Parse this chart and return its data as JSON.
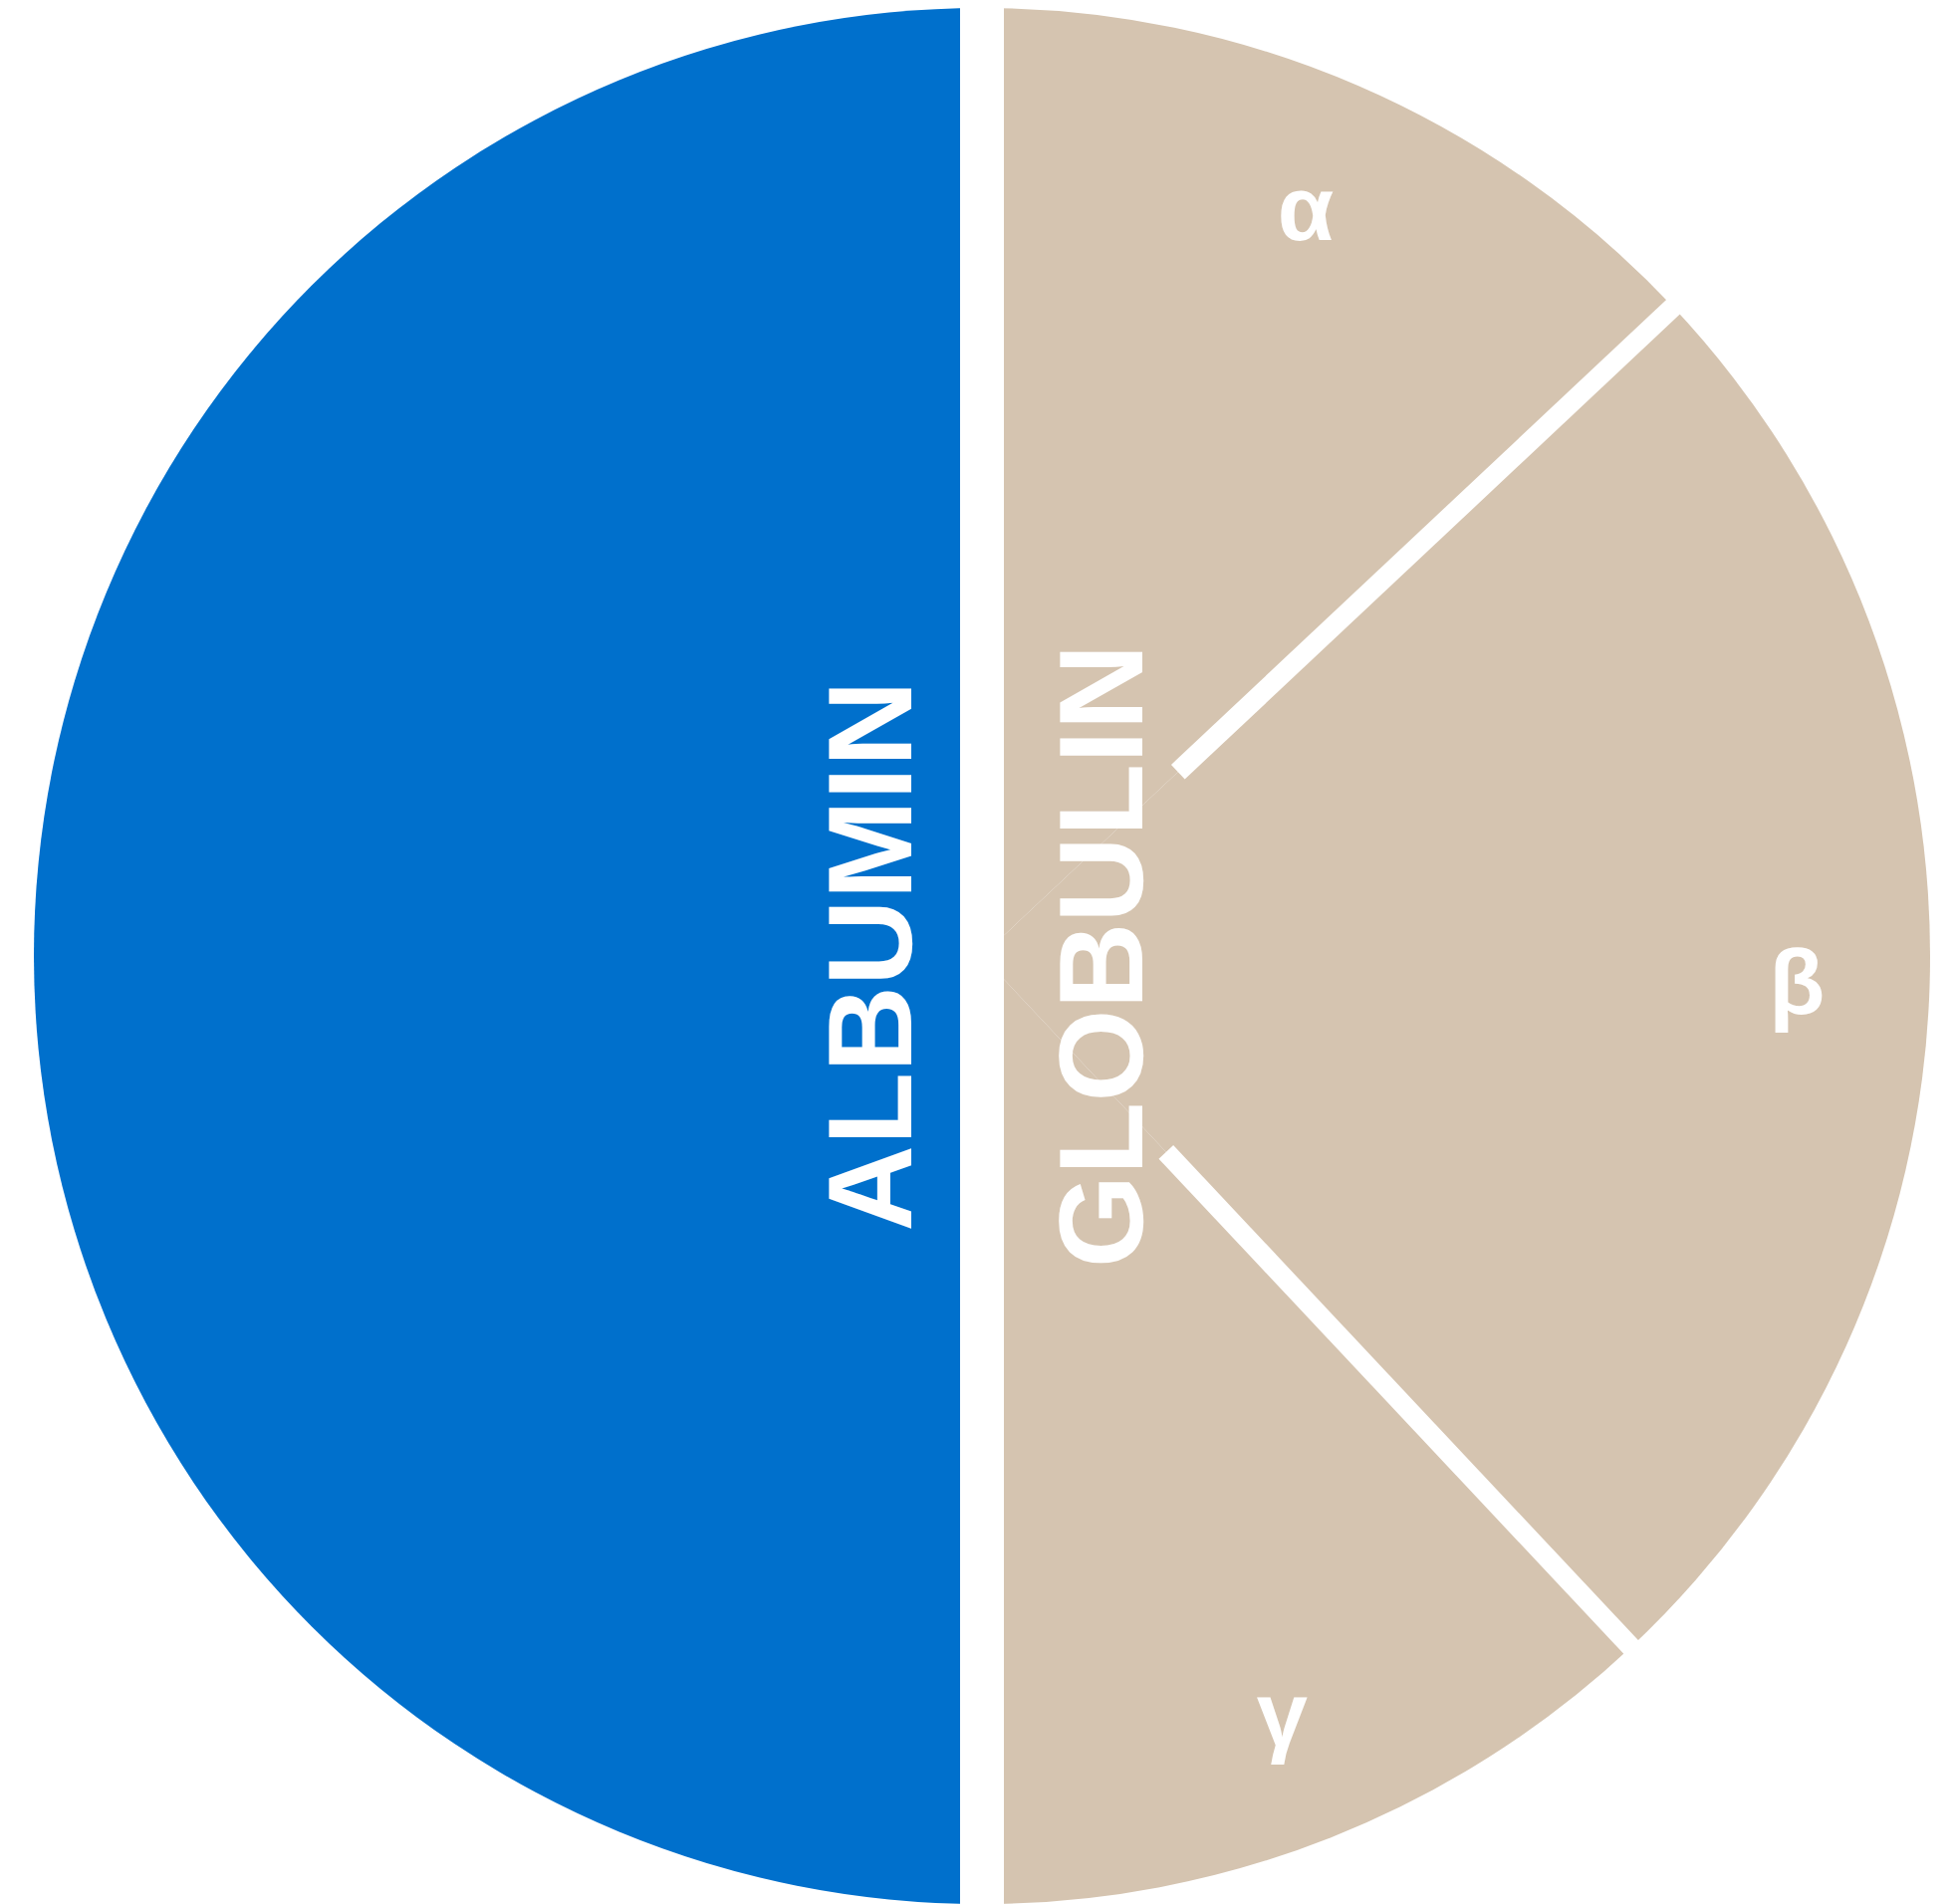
{
  "chart_data": {
    "type": "pie",
    "categories": [
      "ALBUMIN",
      "α",
      "β",
      "γ"
    ],
    "values": [
      50,
      13,
      25,
      12
    ],
    "colors": [
      "#0070cc",
      "#d5c4b0",
      "#d5c4b0",
      "#d5c4b0"
    ],
    "annotations": [
      "GLOBULIN"
    ]
  }
}
